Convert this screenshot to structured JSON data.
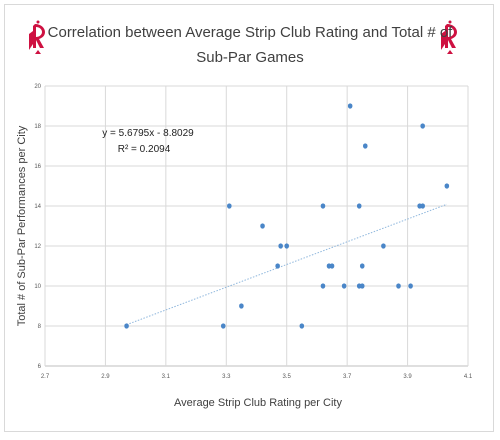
{
  "chart_data": {
    "type": "scatter",
    "title_line1": "Correlation between Average Strip Club Rating and Total # of",
    "title_line2": "Sub-Par Games",
    "xlabel": "Average Strip Club Rating per City",
    "ylabel": "Total # of Sub-Par Performances per City",
    "xlim": [
      2.7,
      4.1
    ],
    "ylim": [
      6,
      20
    ],
    "x_ticks": [
      "2.7",
      "2.9",
      "3.1",
      "3.3",
      "3.5",
      "3.7",
      "3.9",
      "4.1"
    ],
    "y_ticks": [
      "6",
      "8",
      "10",
      "12",
      "14",
      "16",
      "18",
      "20"
    ],
    "grid": true,
    "point_color": "#4a86c8",
    "trend_color": "#8fb7dd",
    "trendline": {
      "slope": 5.6795,
      "intercept": -8.8029,
      "x_range": [
        2.97,
        4.03
      ]
    },
    "equation": "y = 5.6795x - 8.8029",
    "r_squared_label": "R² = 0.2094",
    "points": [
      {
        "x": 2.97,
        "y": 8
      },
      {
        "x": 3.29,
        "y": 8
      },
      {
        "x": 3.31,
        "y": 14
      },
      {
        "x": 3.35,
        "y": 9
      },
      {
        "x": 3.42,
        "y": 13
      },
      {
        "x": 3.47,
        "y": 11
      },
      {
        "x": 3.48,
        "y": 12
      },
      {
        "x": 3.5,
        "y": 12
      },
      {
        "x": 3.55,
        "y": 8
      },
      {
        "x": 3.62,
        "y": 10
      },
      {
        "x": 3.62,
        "y": 14
      },
      {
        "x": 3.64,
        "y": 11
      },
      {
        "x": 3.65,
        "y": 11
      },
      {
        "x": 3.69,
        "y": 10
      },
      {
        "x": 3.71,
        "y": 19
      },
      {
        "x": 3.74,
        "y": 10
      },
      {
        "x": 3.74,
        "y": 14
      },
      {
        "x": 3.75,
        "y": 10
      },
      {
        "x": 3.75,
        "y": 11
      },
      {
        "x": 3.76,
        "y": 17
      },
      {
        "x": 3.82,
        "y": 12
      },
      {
        "x": 3.87,
        "y": 10
      },
      {
        "x": 3.91,
        "y": 10
      },
      {
        "x": 3.94,
        "y": 14
      },
      {
        "x": 3.95,
        "y": 14
      },
      {
        "x": 3.95,
        "y": 18
      },
      {
        "x": 4.03,
        "y": 15
      }
    ]
  },
  "logo": {
    "icon": "rockets-logo-icon",
    "color": "#ce1141"
  }
}
